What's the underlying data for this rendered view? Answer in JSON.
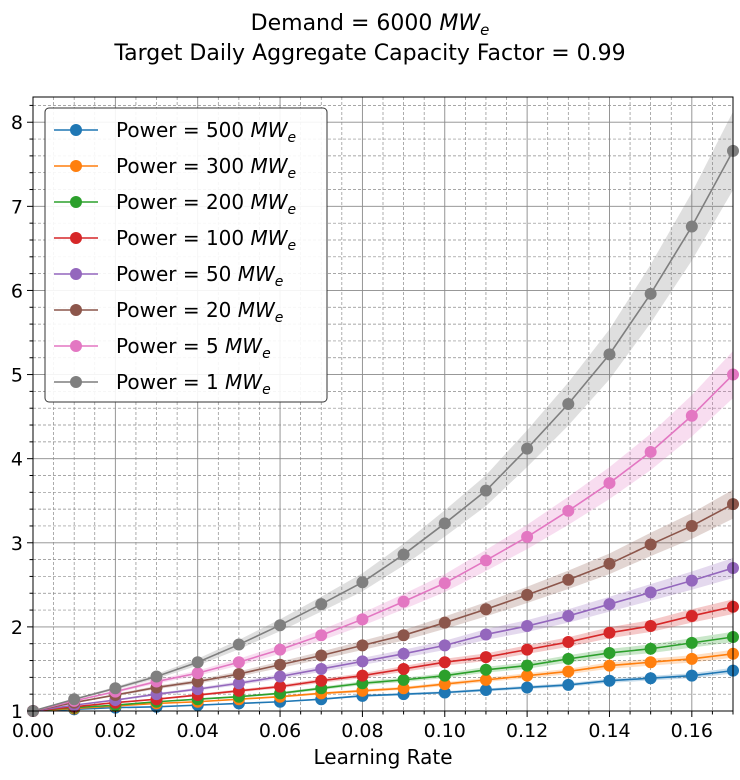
{
  "chart_data": {
    "type": "line",
    "title_lines": [
      {
        "text": "Demand = 6000 ",
        "var": "MW",
        "sub": "e"
      },
      {
        "text": "Target Daily Aggregate Capacity Factor = 0.99",
        "var": "",
        "sub": ""
      }
    ],
    "xlabel": "Learning Rate",
    "ylabel": "",
    "xlim": [
      0,
      0.17
    ],
    "ylim": [
      1,
      8.3
    ],
    "x_ticks": [
      "0.00",
      "0.02",
      "0.04",
      "0.06",
      "0.08",
      "0.10",
      "0.12",
      "0.14",
      "0.16"
    ],
    "y_ticks": [
      "1",
      "2",
      "3",
      "4",
      "5",
      "6",
      "7",
      "8"
    ],
    "grid": true,
    "legend_position": "top-left",
    "x": [
      0.0,
      0.01,
      0.02,
      0.03,
      0.04,
      0.05,
      0.06,
      0.07,
      0.08,
      0.09,
      0.1,
      0.11,
      0.12,
      0.13,
      0.14,
      0.15,
      0.16,
      0.17
    ],
    "series": [
      {
        "name_prefix": "Power = 500 ",
        "name_var": "MW",
        "name_sub": "e",
        "color": "#1f77b4",
        "values": [
          1.0,
          1.02,
          1.04,
          1.05,
          1.07,
          1.09,
          1.11,
          1.14,
          1.18,
          1.2,
          1.22,
          1.25,
          1.28,
          1.31,
          1.36,
          1.39,
          1.42,
          1.48
        ]
      },
      {
        "name_prefix": "Power = 300 ",
        "name_var": "MW",
        "name_sub": "e",
        "color": "#ff7f0e",
        "values": [
          1.0,
          1.03,
          1.06,
          1.09,
          1.11,
          1.14,
          1.17,
          1.21,
          1.24,
          1.27,
          1.32,
          1.37,
          1.42,
          1.47,
          1.54,
          1.58,
          1.62,
          1.68
        ]
      },
      {
        "name_prefix": "Power = 200 ",
        "name_var": "MW",
        "name_sub": "e",
        "color": "#2ca02c",
        "values": [
          1.0,
          1.04,
          1.07,
          1.11,
          1.14,
          1.17,
          1.21,
          1.27,
          1.33,
          1.37,
          1.42,
          1.49,
          1.54,
          1.62,
          1.69,
          1.74,
          1.81,
          1.88
        ]
      },
      {
        "name_prefix": "Power = 100 ",
        "name_var": "MW",
        "name_sub": "e",
        "color": "#d62728",
        "values": [
          1.0,
          1.05,
          1.1,
          1.14,
          1.19,
          1.24,
          1.29,
          1.36,
          1.42,
          1.5,
          1.58,
          1.64,
          1.73,
          1.82,
          1.93,
          2.01,
          2.13,
          2.24
        ]
      },
      {
        "name_prefix": "Power = 50 ",
        "name_var": "MW",
        "name_sub": "e",
        "color": "#9467bd",
        "values": [
          1.0,
          1.07,
          1.13,
          1.2,
          1.26,
          1.33,
          1.41,
          1.5,
          1.59,
          1.68,
          1.78,
          1.91,
          2.01,
          2.13,
          2.27,
          2.41,
          2.55,
          2.7
        ]
      },
      {
        "name_prefix": "Power = 20 ",
        "name_var": "MW",
        "name_sub": "e",
        "color": "#8c564b",
        "values": [
          1.0,
          1.1,
          1.19,
          1.28,
          1.35,
          1.44,
          1.55,
          1.66,
          1.78,
          1.9,
          2.05,
          2.21,
          2.38,
          2.56,
          2.75,
          2.98,
          3.2,
          3.46
        ]
      },
      {
        "name_prefix": "Power = 5 ",
        "name_var": "MW",
        "name_sub": "e",
        "color": "#e377c2",
        "values": [
          1.0,
          1.12,
          1.23,
          1.35,
          1.45,
          1.58,
          1.73,
          1.9,
          2.09,
          2.3,
          2.52,
          2.79,
          3.07,
          3.38,
          3.71,
          4.08,
          4.51,
          5.0
        ]
      },
      {
        "name_prefix": "Power = 1 ",
        "name_var": "MW",
        "name_sub": "e",
        "color": "#7f7f7f",
        "values": [
          1.0,
          1.14,
          1.27,
          1.41,
          1.58,
          1.79,
          2.02,
          2.27,
          2.53,
          2.86,
          3.23,
          3.62,
          4.12,
          4.65,
          5.24,
          5.96,
          6.76,
          7.66
        ]
      }
    ]
  }
}
